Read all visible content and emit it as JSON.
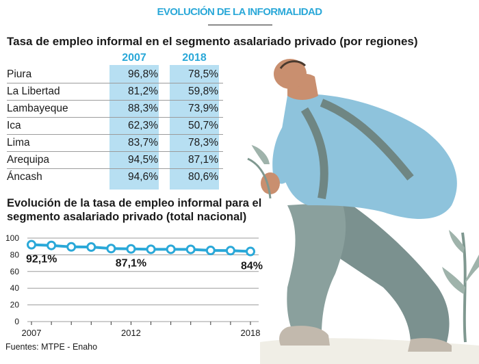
{
  "header": {
    "title": "EVOLUCIÓN DE LA INFORMALIDAD"
  },
  "table": {
    "title": "Tasa de empleo informal en el segmento asalariado privado (por regiones)",
    "columns": [
      "2007",
      "2018"
    ],
    "rows": [
      {
        "region": "Piura",
        "v2007": "96,8%",
        "v2018": "78,5%"
      },
      {
        "region": "La Libertad",
        "v2007": "81,2%",
        "v2018": "59,8%"
      },
      {
        "region": "Lambayeque",
        "v2007": "88,3%",
        "v2018": "73,9%"
      },
      {
        "region": "Ica",
        "v2007": "62,3%",
        "v2018": "50,7%"
      },
      {
        "region": "Lima",
        "v2007": "83,7%",
        "v2018": "78,3%"
      },
      {
        "region": "Arequipa",
        "v2007": "94,5%",
        "v2018": "87,1%"
      },
      {
        "region": "Áncash",
        "v2007": "94,6%",
        "v2018": "80,6%"
      }
    ]
  },
  "colors": {
    "accent": "#2aa8d8",
    "column_fill": "#b7dff2",
    "shirt": "#8ec3dc",
    "trousers": "#7b918f"
  },
  "chart_data": {
    "type": "line",
    "title": "Evolución de la tasa de empleo informal para el segmento asalariado privado (total nacional)",
    "x": [
      2007,
      2008,
      2009,
      2010,
      2011,
      2012,
      2013,
      2014,
      2015,
      2016,
      2017,
      2018
    ],
    "series": [
      {
        "values": [
          92.1,
          91.2,
          89.5,
          89.3,
          87.5,
          87.1,
          86.6,
          86.6,
          86.5,
          85.2,
          85.0,
          84.0
        ]
      }
    ],
    "xticks": [
      "2007",
      "2012",
      "2018"
    ],
    "yticks": [
      "0",
      "20",
      "40",
      "60",
      "80",
      "100"
    ],
    "ylim": [
      0,
      100
    ],
    "annotations": [
      {
        "text": "92,1%",
        "x": 2007
      },
      {
        "text": "87,1%",
        "x": 2012
      },
      {
        "text": "84%",
        "x": 2018
      }
    ],
    "grid": true
  },
  "source": "Fuentes: MTPE - Enaho"
}
